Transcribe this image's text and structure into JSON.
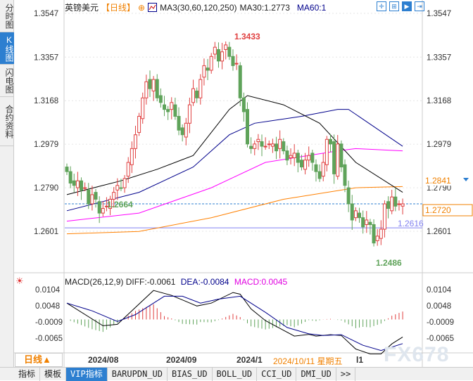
{
  "sidebar": {
    "tabs": [
      "分时图",
      "K线图",
      "闪电图",
      "合约资料"
    ],
    "active": 1
  },
  "header": {
    "symbol": "英镑美元",
    "period": "【日线】",
    "indicator": "MA3(30,60,120,250)",
    "ma30": "MA30:1.2773",
    "ma60": "MA60:1"
  },
  "toolbar": {
    "icons": [
      "crosshair-icon",
      "zoom-range-icon",
      "cursor-icon",
      "exit-icon"
    ]
  },
  "price_axis": {
    "labels": [
      "1.3547",
      "1.3357",
      "1.3168",
      "1.2979",
      "1.2790",
      "1.2601"
    ],
    "values": [
      1.3547,
      1.3357,
      1.3168,
      1.2979,
      1.279,
      1.2601
    ]
  },
  "annotations": {
    "high": "1.3433",
    "low1": "1.2664",
    "low2": "1.2486",
    "current": "1.2720",
    "ma_label": "1.2841",
    "support": "1.2616"
  },
  "colors": {
    "up": "#e04040",
    "down": "#5fa35a",
    "ma30": "#000000",
    "ma60": "#00008b",
    "ma120": "#ff00ff",
    "ma250": "#ff8000",
    "accent": "#2d7fd0"
  },
  "chart_data": {
    "type": "candlestick",
    "closes": [
      1.286,
      1.281,
      1.28,
      1.282,
      1.278,
      1.279,
      1.272,
      1.276,
      1.274,
      1.268,
      1.27,
      1.271,
      1.274,
      1.277,
      1.28,
      1.279,
      1.283,
      1.29,
      1.296,
      1.302,
      1.31,
      1.318,
      1.325,
      1.322,
      1.326,
      1.318,
      1.316,
      1.313,
      1.312,
      1.316,
      1.31,
      1.304,
      1.302,
      1.307,
      1.315,
      1.322,
      1.318,
      1.326,
      1.332,
      1.33,
      1.336,
      1.34,
      1.334,
      1.338,
      1.341,
      1.336,
      1.332,
      1.333,
      1.318,
      1.312,
      1.298,
      1.296,
      1.298,
      1.3,
      1.297,
      1.297,
      1.298,
      1.298,
      1.295,
      1.3,
      1.295,
      1.291,
      1.293,
      1.294,
      1.29,
      1.288,
      1.291,
      1.293,
      1.29,
      1.286,
      1.283,
      1.29,
      1.3,
      1.298,
      1.285,
      1.298,
      1.288,
      1.28,
      1.272,
      1.265,
      1.269,
      1.266,
      1.262,
      1.265,
      1.263,
      1.255,
      1.258,
      1.261,
      1.272,
      1.27,
      1.275,
      1.271,
      1.272,
      1.272
    ],
    "ma30": [
      [
        0,
        1.276
      ],
      [
        15,
        1.282
      ],
      [
        25,
        1.287
      ],
      [
        35,
        1.293
      ],
      [
        45,
        1.313
      ],
      [
        50,
        1.319
      ],
      [
        60,
        1.315
      ],
      [
        70,
        1.307
      ],
      [
        80,
        1.29
      ],
      [
        93,
        1.277
      ]
    ],
    "ma60": [
      [
        0,
        1.269
      ],
      [
        20,
        1.277
      ],
      [
        35,
        1.288
      ],
      [
        45,
        1.302
      ],
      [
        52,
        1.307
      ],
      [
        65,
        1.31
      ],
      [
        75,
        1.313
      ],
      [
        78,
        1.313
      ],
      [
        93,
        1.297
      ]
    ],
    "ma120": [
      [
        0,
        1.2645
      ],
      [
        20,
        1.268
      ],
      [
        40,
        1.279
      ],
      [
        55,
        1.29
      ],
      [
        75,
        1.295
      ],
      [
        80,
        1.296
      ],
      [
        93,
        1.295
      ]
    ],
    "ma250": [
      [
        0,
        1.259
      ],
      [
        20,
        1.26
      ],
      [
        40,
        1.266
      ],
      [
        60,
        1.274
      ],
      [
        80,
        1.279
      ],
      [
        93,
        1.2795
      ]
    ],
    "ylim": [
      1.247,
      1.3547
    ]
  },
  "macd": {
    "title": "MACD(26,12,9)",
    "diff_label": "DIFF:-0.0061",
    "dea_label": "DEA:-0.0084",
    "macd_label": "MACD:0.0045",
    "axis_labels": [
      "0.0104",
      "0.0048",
      "-0.0009",
      "-0.0065"
    ],
    "axis_values": [
      0.0104,
      0.0048,
      -0.0009,
      -0.0065
    ],
    "diff": [
      [
        0,
        0.0057
      ],
      [
        10,
        -0.0022
      ],
      [
        14,
        -0.0017
      ],
      [
        24,
        0.0101
      ],
      [
        29,
        0.0084
      ],
      [
        36,
        0.0047
      ],
      [
        40,
        0.0057
      ],
      [
        46,
        0.0094
      ],
      [
        48,
        0.0088
      ],
      [
        51,
        0.0037
      ],
      [
        55,
        -0.0004
      ],
      [
        63,
        -0.0058
      ],
      [
        67,
        -0.0052
      ],
      [
        69,
        -0.0058
      ],
      [
        73,
        -0.0053
      ],
      [
        76,
        -0.0056
      ],
      [
        80,
        -0.0103
      ],
      [
        84,
        -0.012
      ],
      [
        87,
        -0.012
      ],
      [
        90,
        -0.0085
      ],
      [
        93,
        -0.0061
      ]
    ],
    "dea": [
      [
        0,
        0.0057
      ],
      [
        7,
        0.003
      ],
      [
        14,
        -0.0007
      ],
      [
        19,
        0.0017
      ],
      [
        27,
        0.0081
      ],
      [
        32,
        0.0081
      ],
      [
        37,
        0.0057
      ],
      [
        42,
        0.0071
      ],
      [
        48,
        0.0081
      ],
      [
        55,
        0.0025
      ],
      [
        61,
        -0.0028
      ],
      [
        67,
        -0.005
      ],
      [
        71,
        -0.0056
      ],
      [
        76,
        -0.0053
      ],
      [
        82,
        -0.009
      ],
      [
        87,
        -0.0108
      ],
      [
        93,
        -0.0084
      ]
    ]
  },
  "xaxis": {
    "labels": [
      "2024/08",
      "2024/09",
      "2024/1",
      "l1"
    ],
    "cursor_date": "2024/10/11 星期五"
  },
  "day_button": "日线▲",
  "tabs": [
    "指标",
    "模板",
    "VIP指标",
    "BARUPDN_UD",
    "BIAS_UD",
    "BOLL_UD",
    "CCI_UD",
    "DMI_UD",
    ">>"
  ],
  "watermark": "FX678"
}
